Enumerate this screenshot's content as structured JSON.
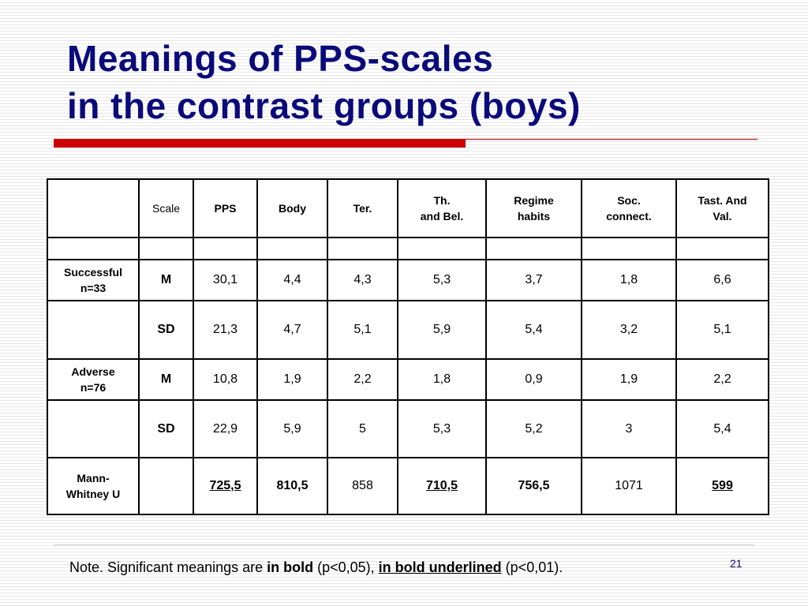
{
  "title": {
    "line1": "Meanings of PPS-scales",
    "line2": "in the contrast groups (boys)"
  },
  "table": {
    "headers": {
      "blank": "",
      "scale": "Scale",
      "pps": "PPS",
      "body": "Body",
      "ter": "Ter.",
      "th_line1": "Th.",
      "th_line2": "and Bel.",
      "regime_line1": "Regime",
      "regime_line2": "habits",
      "soc_line1": "Soc.",
      "soc_line2": "connect.",
      "tast_line1": "Tast. And",
      "tast_line2": "Val."
    },
    "successful": {
      "label_line1": "Successful",
      "label_line2": "n=33",
      "m_label": "M",
      "m_values": [
        "30,1",
        "4,4",
        "4,3",
        "5,3",
        "3,7",
        "1,8",
        "6,6"
      ],
      "sd_label": "SD",
      "sd_values": [
        "21,3",
        "4,7",
        "5,1",
        "5,9",
        "5,4",
        "3,2",
        "5,1"
      ]
    },
    "adverse": {
      "label_line1": "Adverse",
      "label_line2": "n=76",
      "m_label": "M",
      "m_values": [
        "10,8",
        "1,9",
        "2,2",
        "1,8",
        "0,9",
        "1,9",
        "2,2"
      ],
      "sd_label": "SD",
      "sd_values": [
        "22,9",
        "5,9",
        "5",
        "5,3",
        "5,2",
        "3",
        "5,4"
      ]
    },
    "mann_whitney": {
      "label_line1": "Mann-",
      "label_line2": "Whitney U",
      "values": [
        "725,5",
        "810,5",
        "858",
        "710,5",
        "756,5",
        "1071",
        "599"
      ]
    }
  },
  "note": {
    "prefix": "Note. Significant meanings are ",
    "bold_text": "in bold",
    "middle": " (p<0,05), ",
    "bold_underlined_text": "in bold underlined",
    "suffix": " (p<0,01)."
  },
  "page_number": "21",
  "colors": {
    "title": "#0a0a7a",
    "accent_rule": "#cc0000"
  }
}
